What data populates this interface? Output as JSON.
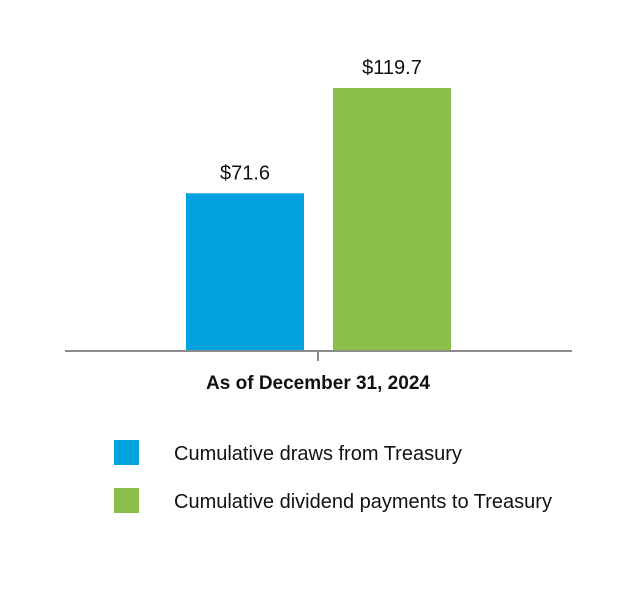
{
  "chart_data": {
    "type": "bar",
    "categories": [
      "As of December 31, 2024"
    ],
    "series": [
      {
        "name": "Cumulative draws from Treasury",
        "values": [
          71.6
        ],
        "label": "$71.6",
        "color": "#00a3e0"
      },
      {
        "name": "Cumulative dividend payments to Treasury",
        "values": [
          119.7
        ],
        "label": "$119.7",
        "color": "#8bbf4a"
      }
    ],
    "title": "",
    "xlabel": "",
    "ylabel": "",
    "ylim": [
      0,
      119.7
    ],
    "grid": false,
    "legend_position": "bottom"
  }
}
